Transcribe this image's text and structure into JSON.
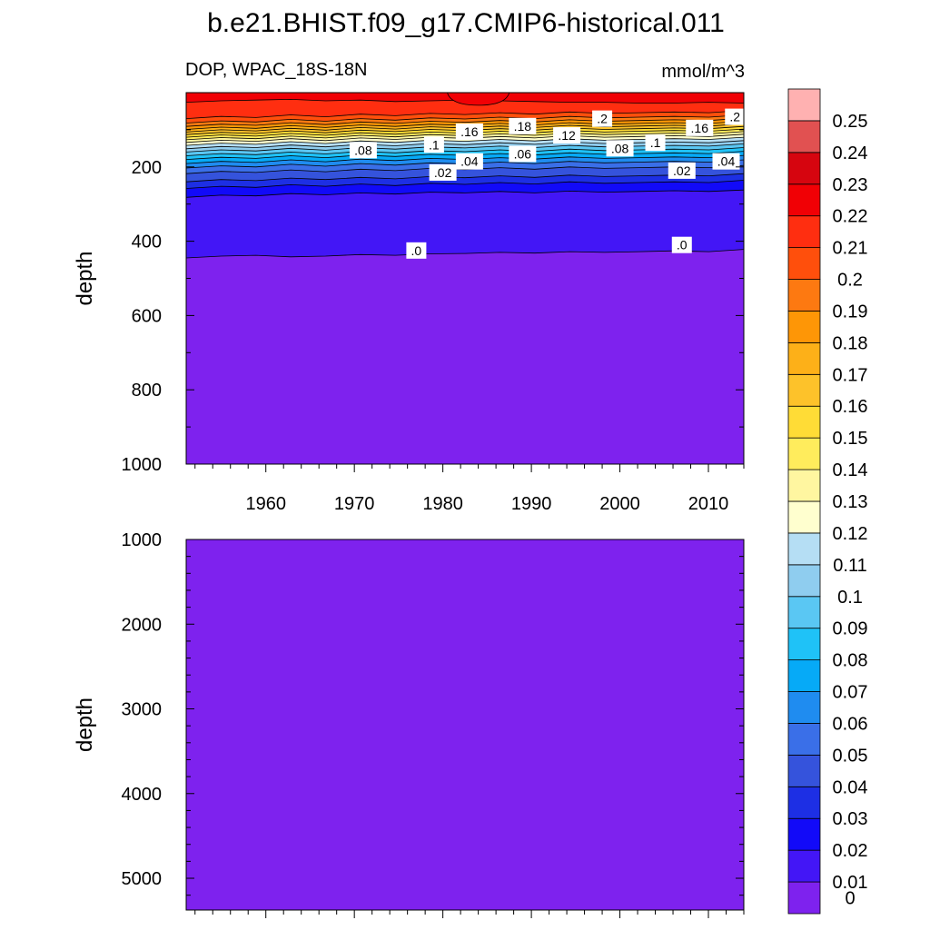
{
  "title": "b.e21.BHIST.f09_g17.CMIP6-historical.011",
  "subtitle_left": "DOP, WPAC_18S-18N",
  "subtitle_right": "mmol/m^3",
  "chart_data": [
    {
      "type": "heatmap",
      "panel": "upper",
      "ylabel": "depth",
      "yticks": [
        200,
        400,
        600,
        800,
        1000
      ],
      "ylim": [
        1000,
        0
      ],
      "xticks": [
        1960,
        1970,
        1980,
        1990,
        2000,
        2010
      ],
      "xlim": [
        1951,
        2014
      ],
      "contour_labels": [
        {
          "text": ".2",
          "x": 1998,
          "depth": 70
        },
        {
          "text": ".2",
          "x": 2013,
          "depth": 65
        },
        {
          "text": ".18",
          "x": 1989,
          "depth": 90
        },
        {
          "text": ".16",
          "x": 1983,
          "depth": 105
        },
        {
          "text": ".16",
          "x": 2009,
          "depth": 95
        },
        {
          "text": ".12",
          "x": 1994,
          "depth": 115
        },
        {
          "text": ".1",
          "x": 1979,
          "depth": 140
        },
        {
          "text": ".1",
          "x": 2004,
          "depth": 135
        },
        {
          "text": ".08",
          "x": 1971,
          "depth": 155
        },
        {
          "text": ".08",
          "x": 2000,
          "depth": 150
        },
        {
          "text": ".06",
          "x": 1989,
          "depth": 165
        },
        {
          "text": ".04",
          "x": 1983,
          "depth": 185
        },
        {
          "text": ".04",
          "x": 2012,
          "depth": 185
        },
        {
          "text": ".02",
          "x": 1980,
          "depth": 215
        },
        {
          "text": ".02",
          "x": 2007,
          "depth": 210
        },
        {
          "text": ".0",
          "x": 1977,
          "depth": 425
        },
        {
          "text": ".0",
          "x": 2007,
          "depth": 410
        }
      ],
      "layers": [
        {
          "value": 0.0,
          "depth": [
            445,
            440,
            438,
            442,
            440,
            436,
            438,
            434,
            433,
            430,
            432,
            428,
            430,
            428,
            426,
            428,
            422
          ]
        },
        {
          "value": 0.01,
          "depth": [
            282,
            276,
            278,
            272,
            275,
            270,
            273,
            268,
            270,
            266,
            270,
            265,
            268,
            266,
            264,
            266,
            262
          ]
        },
        {
          "value": 0.02,
          "depth": [
            258,
            252,
            255,
            248,
            252,
            246,
            250,
            244,
            247,
            242,
            246,
            240,
            244,
            242,
            240,
            242,
            236
          ]
        },
        {
          "value": 0.03,
          "depth": [
            240,
            234,
            237,
            230,
            234,
            228,
            232,
            226,
            229,
            224,
            228,
            222,
            226,
            224,
            222,
            224,
            218
          ]
        },
        {
          "value": 0.04,
          "depth": [
            218,
            212,
            215,
            208,
            213,
            206,
            210,
            204,
            207,
            202,
            206,
            200,
            204,
            202,
            200,
            202,
            196
          ]
        },
        {
          "value": 0.05,
          "depth": [
            203,
            197,
            200,
            193,
            198,
            191,
            195,
            189,
            192,
            187,
            191,
            185,
            189,
            187,
            185,
            187,
            181
          ]
        },
        {
          "value": 0.06,
          "depth": [
            191,
            185,
            188,
            181,
            186,
            179,
            183,
            177,
            180,
            175,
            179,
            173,
            177,
            175,
            173,
            175,
            169
          ]
        },
        {
          "value": 0.07,
          "depth": [
            180,
            174,
            177,
            170,
            175,
            168,
            172,
            166,
            169,
            164,
            168,
            162,
            166,
            164,
            162,
            164,
            158
          ]
        },
        {
          "value": 0.08,
          "depth": [
            170,
            164,
            167,
            160,
            165,
            158,
            162,
            156,
            159,
            154,
            158,
            152,
            156,
            154,
            152,
            154,
            148
          ]
        },
        {
          "value": 0.09,
          "depth": [
            160,
            154,
            157,
            150,
            155,
            148,
            152,
            146,
            149,
            144,
            148,
            142,
            146,
            144,
            142,
            144,
            138
          ]
        },
        {
          "value": 0.1,
          "depth": [
            151,
            145,
            148,
            141,
            146,
            139,
            143,
            137,
            140,
            135,
            139,
            133,
            137,
            135,
            133,
            135,
            129
          ]
        },
        {
          "value": 0.11,
          "depth": [
            142,
            136,
            139,
            132,
            137,
            130,
            134,
            128,
            131,
            126,
            130,
            124,
            128,
            126,
            124,
            126,
            120
          ]
        },
        {
          "value": 0.12,
          "depth": [
            134,
            128,
            131,
            124,
            129,
            122,
            126,
            120,
            123,
            118,
            122,
            116,
            120,
            118,
            116,
            118,
            112
          ]
        },
        {
          "value": 0.13,
          "depth": [
            127,
            121,
            124,
            117,
            122,
            115,
            119,
            113,
            116,
            111,
            115,
            109,
            113,
            111,
            109,
            111,
            105
          ]
        },
        {
          "value": 0.14,
          "depth": [
            120,
            114,
            117,
            110,
            115,
            108,
            112,
            106,
            109,
            104,
            108,
            102,
            106,
            104,
            102,
            104,
            98
          ]
        },
        {
          "value": 0.15,
          "depth": [
            113,
            107,
            110,
            103,
            108,
            101,
            105,
            99,
            102,
            97,
            101,
            95,
            99,
            97,
            95,
            97,
            91
          ]
        },
        {
          "value": 0.16,
          "depth": [
            106,
            100,
            103,
            96,
            101,
            94,
            98,
            92,
            95,
            90,
            94,
            88,
            92,
            90,
            88,
            90,
            84
          ]
        },
        {
          "value": 0.17,
          "depth": [
            99,
            93,
            96,
            89,
            94,
            87,
            91,
            85,
            88,
            83,
            87,
            81,
            85,
            83,
            81,
            83,
            77
          ]
        },
        {
          "value": 0.18,
          "depth": [
            91,
            85,
            88,
            81,
            86,
            79,
            83,
            77,
            80,
            75,
            79,
            73,
            77,
            75,
            73,
            75,
            69
          ]
        },
        {
          "value": 0.19,
          "depth": [
            82,
            76,
            79,
            72,
            77,
            70,
            74,
            68,
            71,
            66,
            70,
            64,
            68,
            66,
            64,
            66,
            60
          ]
        },
        {
          "value": 0.2,
          "depth": [
            70,
            64,
            67,
            60,
            65,
            58,
            62,
            56,
            59,
            54,
            58,
            52,
            56,
            54,
            52,
            54,
            48
          ]
        },
        {
          "value": 0.21,
          "depth": [
            26,
            22,
            20,
            18,
            22,
            20,
            24,
            22,
            20,
            22,
            24,
            26,
            26,
            28,
            28,
            26,
            28
          ]
        }
      ],
      "bubble": {
        "value": 0.22,
        "x_range": [
          1980.5,
          1987.5
        ],
        "depth_max": 34
      }
    },
    {
      "type": "heatmap",
      "panel": "lower",
      "ylabel": "depth",
      "yticks": [
        1000,
        2000,
        3000,
        4000,
        5000
      ],
      "ylim": [
        5375,
        1000
      ],
      "xlim": [
        1951,
        2014
      ],
      "fill_value": 0.0
    }
  ],
  "colorbar": {
    "levels": [
      0,
      0.01,
      0.02,
      0.03,
      0.04,
      0.05,
      0.06,
      0.07,
      0.08,
      0.09,
      0.1,
      0.11,
      0.12,
      0.13,
      0.14,
      0.15,
      0.16,
      0.17,
      0.18,
      0.19,
      0.2,
      0.21,
      0.22,
      0.23,
      0.24,
      0.25
    ],
    "labels": [
      "0",
      "0.01",
      "0.02",
      "0.03",
      "0.04",
      "0.05",
      "0.06",
      "0.07",
      "0.08",
      "0.09",
      "0.1",
      "0.11",
      "0.12",
      "0.13",
      "0.14",
      "0.15",
      "0.16",
      "0.17",
      "0.18",
      "0.19",
      "0.2",
      "0.21",
      "0.22",
      "0.23",
      "0.24",
      "0.25"
    ],
    "colors": [
      "#7e22ee",
      "#4316f6",
      "#120af8",
      "#1d2fe4",
      "#3553dc",
      "#3a6fe8",
      "#1f8cf0",
      "#06aaf7",
      "#1fc2f7",
      "#5ac7f3",
      "#8fcdef",
      "#b5def4",
      "#ffffcf",
      "#fff6a0",
      "#ffec5c",
      "#ffdc36",
      "#fdc22a",
      "#fdb018",
      "#fe9606",
      "#fd7911",
      "#ff4f0c",
      "#ff2e10",
      "#f10005",
      "#d6050f",
      "#e15151",
      "#ffb1b1"
    ]
  }
}
